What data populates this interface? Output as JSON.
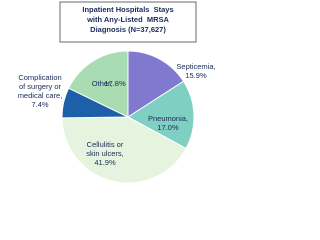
{
  "chart_data": {
    "type": "pie",
    "title": "Inpatient Hospitals  Stays with Any-Listed  MRSA Diagnosis (N=37,627)",
    "categories": [
      "Septicemia,",
      "Pneumonia,",
      "Cellulitis or skin ulcers,",
      "Complication of surgery or medical care,",
      "Other,"
    ],
    "values": [
      15.9,
      17.0,
      41.9,
      7.4,
      17.8
    ],
    "value_labels": [
      "15.9%",
      "17.0%",
      "41.9%",
      "7.4%",
      "17.8%"
    ],
    "colors": [
      "#8079cf",
      "#7fd0c2",
      "#e6f4df",
      "#1d5fa9",
      "#a9dcb2"
    ]
  }
}
